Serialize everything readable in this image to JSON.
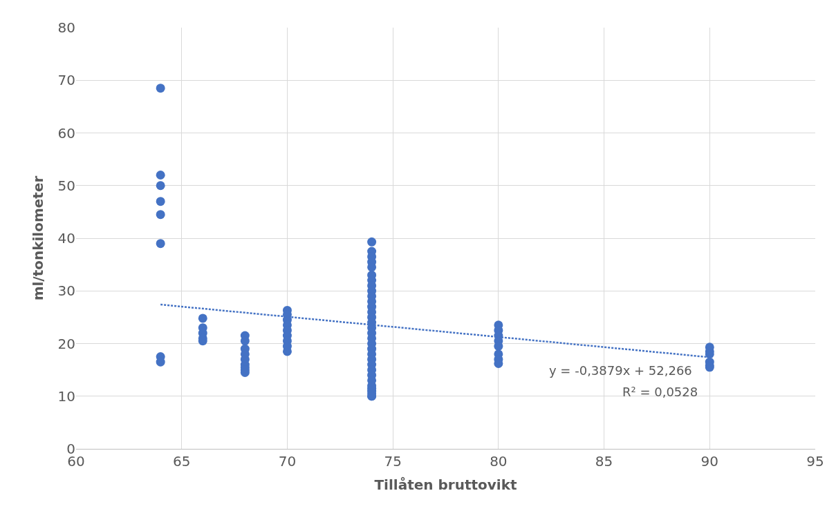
{
  "chart_data": {
    "type": "scatter",
    "xlabel": "Tillåten bruttovikt",
    "ylabel": "ml/tonkilometer",
    "xlim": [
      60,
      95
    ],
    "xticks": [
      60,
      65,
      70,
      75,
      80,
      85,
      90,
      95
    ],
    "ylim": [
      0,
      80
    ],
    "yticks": [
      0,
      10,
      20,
      30,
      40,
      50,
      60,
      70,
      80
    ],
    "grid": true,
    "legend": false,
    "series": [
      {
        "marker": "circle",
        "color": "#4472c4",
        "x": [
          64,
          64,
          64,
          64,
          64,
          64,
          64,
          64,
          66,
          66,
          66,
          66,
          66,
          68,
          68,
          68,
          68,
          68,
          68,
          68,
          68,
          68,
          70,
          70,
          70,
          70,
          70,
          70,
          70,
          70,
          70,
          74,
          74,
          74,
          74,
          74,
          74,
          74,
          74,
          74,
          74,
          74,
          74,
          74,
          74,
          74,
          74,
          74,
          74,
          74,
          74,
          74,
          74,
          74,
          74,
          74,
          74,
          74,
          74,
          74,
          74,
          74,
          74,
          80,
          80,
          80,
          80,
          80,
          80,
          80,
          80,
          90,
          90,
          90,
          90,
          90,
          90
        ],
        "values": [
          68.5,
          52,
          50,
          47,
          44.5,
          39,
          17.5,
          16.5,
          24.8,
          23,
          22,
          21,
          20.5,
          21.5,
          20.5,
          19,
          18,
          17,
          16,
          15.5,
          15,
          14.5,
          26.3,
          25.5,
          24.5,
          23.5,
          22.5,
          21.5,
          20.5,
          19.5,
          18.5,
          39.3,
          37.5,
          36.5,
          35.5,
          34.5,
          33,
          32,
          31,
          30,
          29,
          28,
          27,
          26,
          25,
          24,
          23,
          22,
          21,
          20,
          19,
          18,
          17,
          16,
          15,
          14,
          13,
          12,
          11.5,
          11,
          10.5,
          10,
          10,
          23.5,
          22.5,
          21.5,
          20.5,
          19.5,
          18,
          17,
          16.2,
          19.3,
          18.5,
          18,
          16.5,
          15.8,
          15.5
        ]
      },
      {
        "type": "line",
        "color": "#4472c4",
        "line_style": "dotted",
        "x": [
          64,
          90
        ],
        "values": [
          27.4,
          17.4
        ]
      }
    ],
    "annotations": [
      "y = -0,3879x + 52,266",
      "R² = 0,0528"
    ]
  }
}
